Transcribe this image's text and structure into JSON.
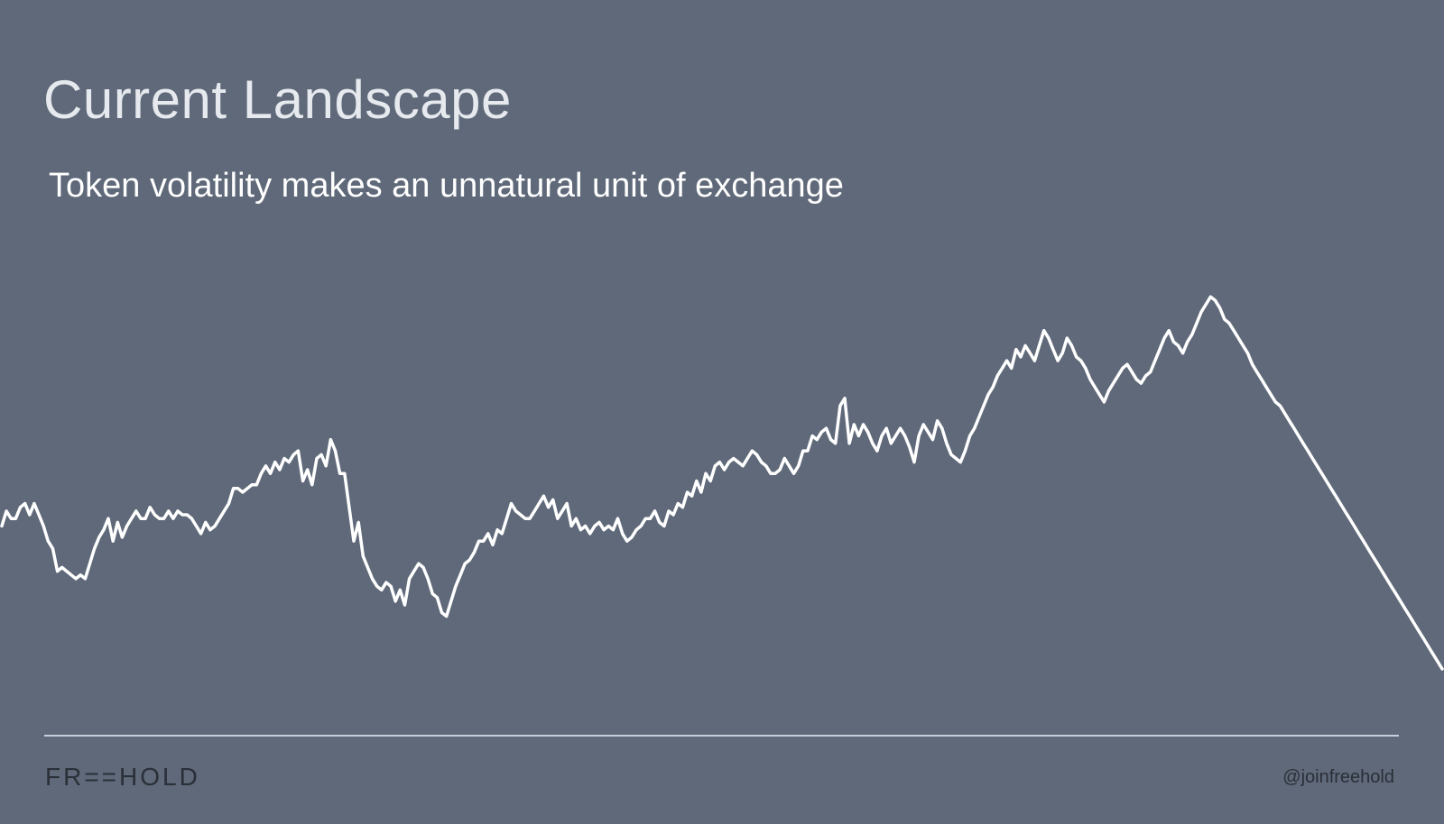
{
  "slide": {
    "title": "Current Landscape",
    "subtitle": "Token volatility makes an unnatural unit of exchange",
    "logo_text": "FR==HOLD",
    "handle": "@joinfreehold",
    "colors": {
      "background": "#5f6979",
      "line": "#ffffff",
      "divider": "#c6cfdc",
      "footer_text": "#2a2f38"
    }
  },
  "chart_data": {
    "type": "line",
    "title": "",
    "xlabel": "",
    "ylabel": "",
    "axes_visible": false,
    "grid": false,
    "ylim": [
      0,
      100
    ],
    "series": [
      {
        "values": [
          38,
          42,
          40,
          40,
          43,
          44,
          41,
          44,
          41,
          38,
          34,
          32,
          26,
          27,
          26,
          25,
          24,
          25,
          24,
          28,
          32,
          35,
          37,
          40,
          34,
          39,
          35,
          38,
          40,
          42,
          40,
          40,
          43,
          41,
          40,
          40,
          42,
          40,
          42,
          41,
          41,
          40,
          38,
          36,
          39,
          37,
          38,
          40,
          42,
          44,
          48,
          48,
          47,
          48,
          49,
          49,
          52,
          54,
          52,
          55,
          53,
          56,
          55,
          57,
          58,
          50,
          53,
          49,
          56,
          57,
          54,
          61,
          58,
          52,
          52,
          43,
          34,
          39,
          30,
          27,
          24,
          22,
          21,
          23,
          22,
          18,
          21,
          17,
          24,
          26,
          28,
          27,
          24,
          20,
          19,
          15,
          14,
          18,
          22,
          25,
          28,
          29,
          31,
          34,
          34,
          36,
          33,
          37,
          36,
          40,
          44,
          42,
          41,
          40,
          40,
          42,
          44,
          46,
          43,
          45,
          40,
          42,
          44,
          38,
          40,
          37,
          38,
          36,
          38,
          39,
          37,
          38,
          37,
          40,
          36,
          34,
          35,
          37,
          38,
          40,
          40,
          42,
          39,
          38,
          42,
          41,
          44,
          43,
          47,
          46,
          50,
          47,
          52,
          50,
          54,
          55,
          53,
          55,
          56,
          55,
          54,
          56,
          58,
          57,
          55,
          54,
          52,
          52,
          53,
          56,
          54,
          52,
          54,
          58,
          58,
          62,
          61,
          63,
          64,
          61,
          60,
          70,
          72,
          60,
          65,
          62,
          65,
          63,
          60,
          58,
          62,
          64,
          60,
          62,
          64,
          62,
          59,
          55,
          62,
          65,
          63,
          61,
          66,
          64,
          60,
          57,
          56,
          55,
          58,
          62,
          64,
          67,
          70,
          73,
          75,
          78,
          80,
          82,
          80,
          85,
          83,
          86,
          84,
          82,
          86,
          90,
          88,
          85,
          82,
          84,
          88,
          86,
          83,
          82,
          80,
          77,
          75,
          73,
          71,
          74,
          76,
          78,
          80,
          81,
          79,
          77,
          76,
          78,
          79,
          82,
          85,
          88,
          90,
          87,
          86,
          84,
          87,
          89,
          92,
          95,
          97,
          99,
          98,
          96,
          93,
          92,
          90,
          88,
          86,
          84,
          81,
          79,
          77,
          75,
          73,
          71,
          70,
          68,
          66,
          64,
          62,
          60,
          58,
          56,
          54,
          52,
          50,
          48,
          46,
          44,
          42,
          40,
          38,
          36,
          34,
          32,
          30,
          28,
          26,
          24,
          22,
          20,
          18,
          16,
          14,
          12,
          10,
          8,
          6,
          4,
          2,
          0
        ]
      }
    ]
  }
}
